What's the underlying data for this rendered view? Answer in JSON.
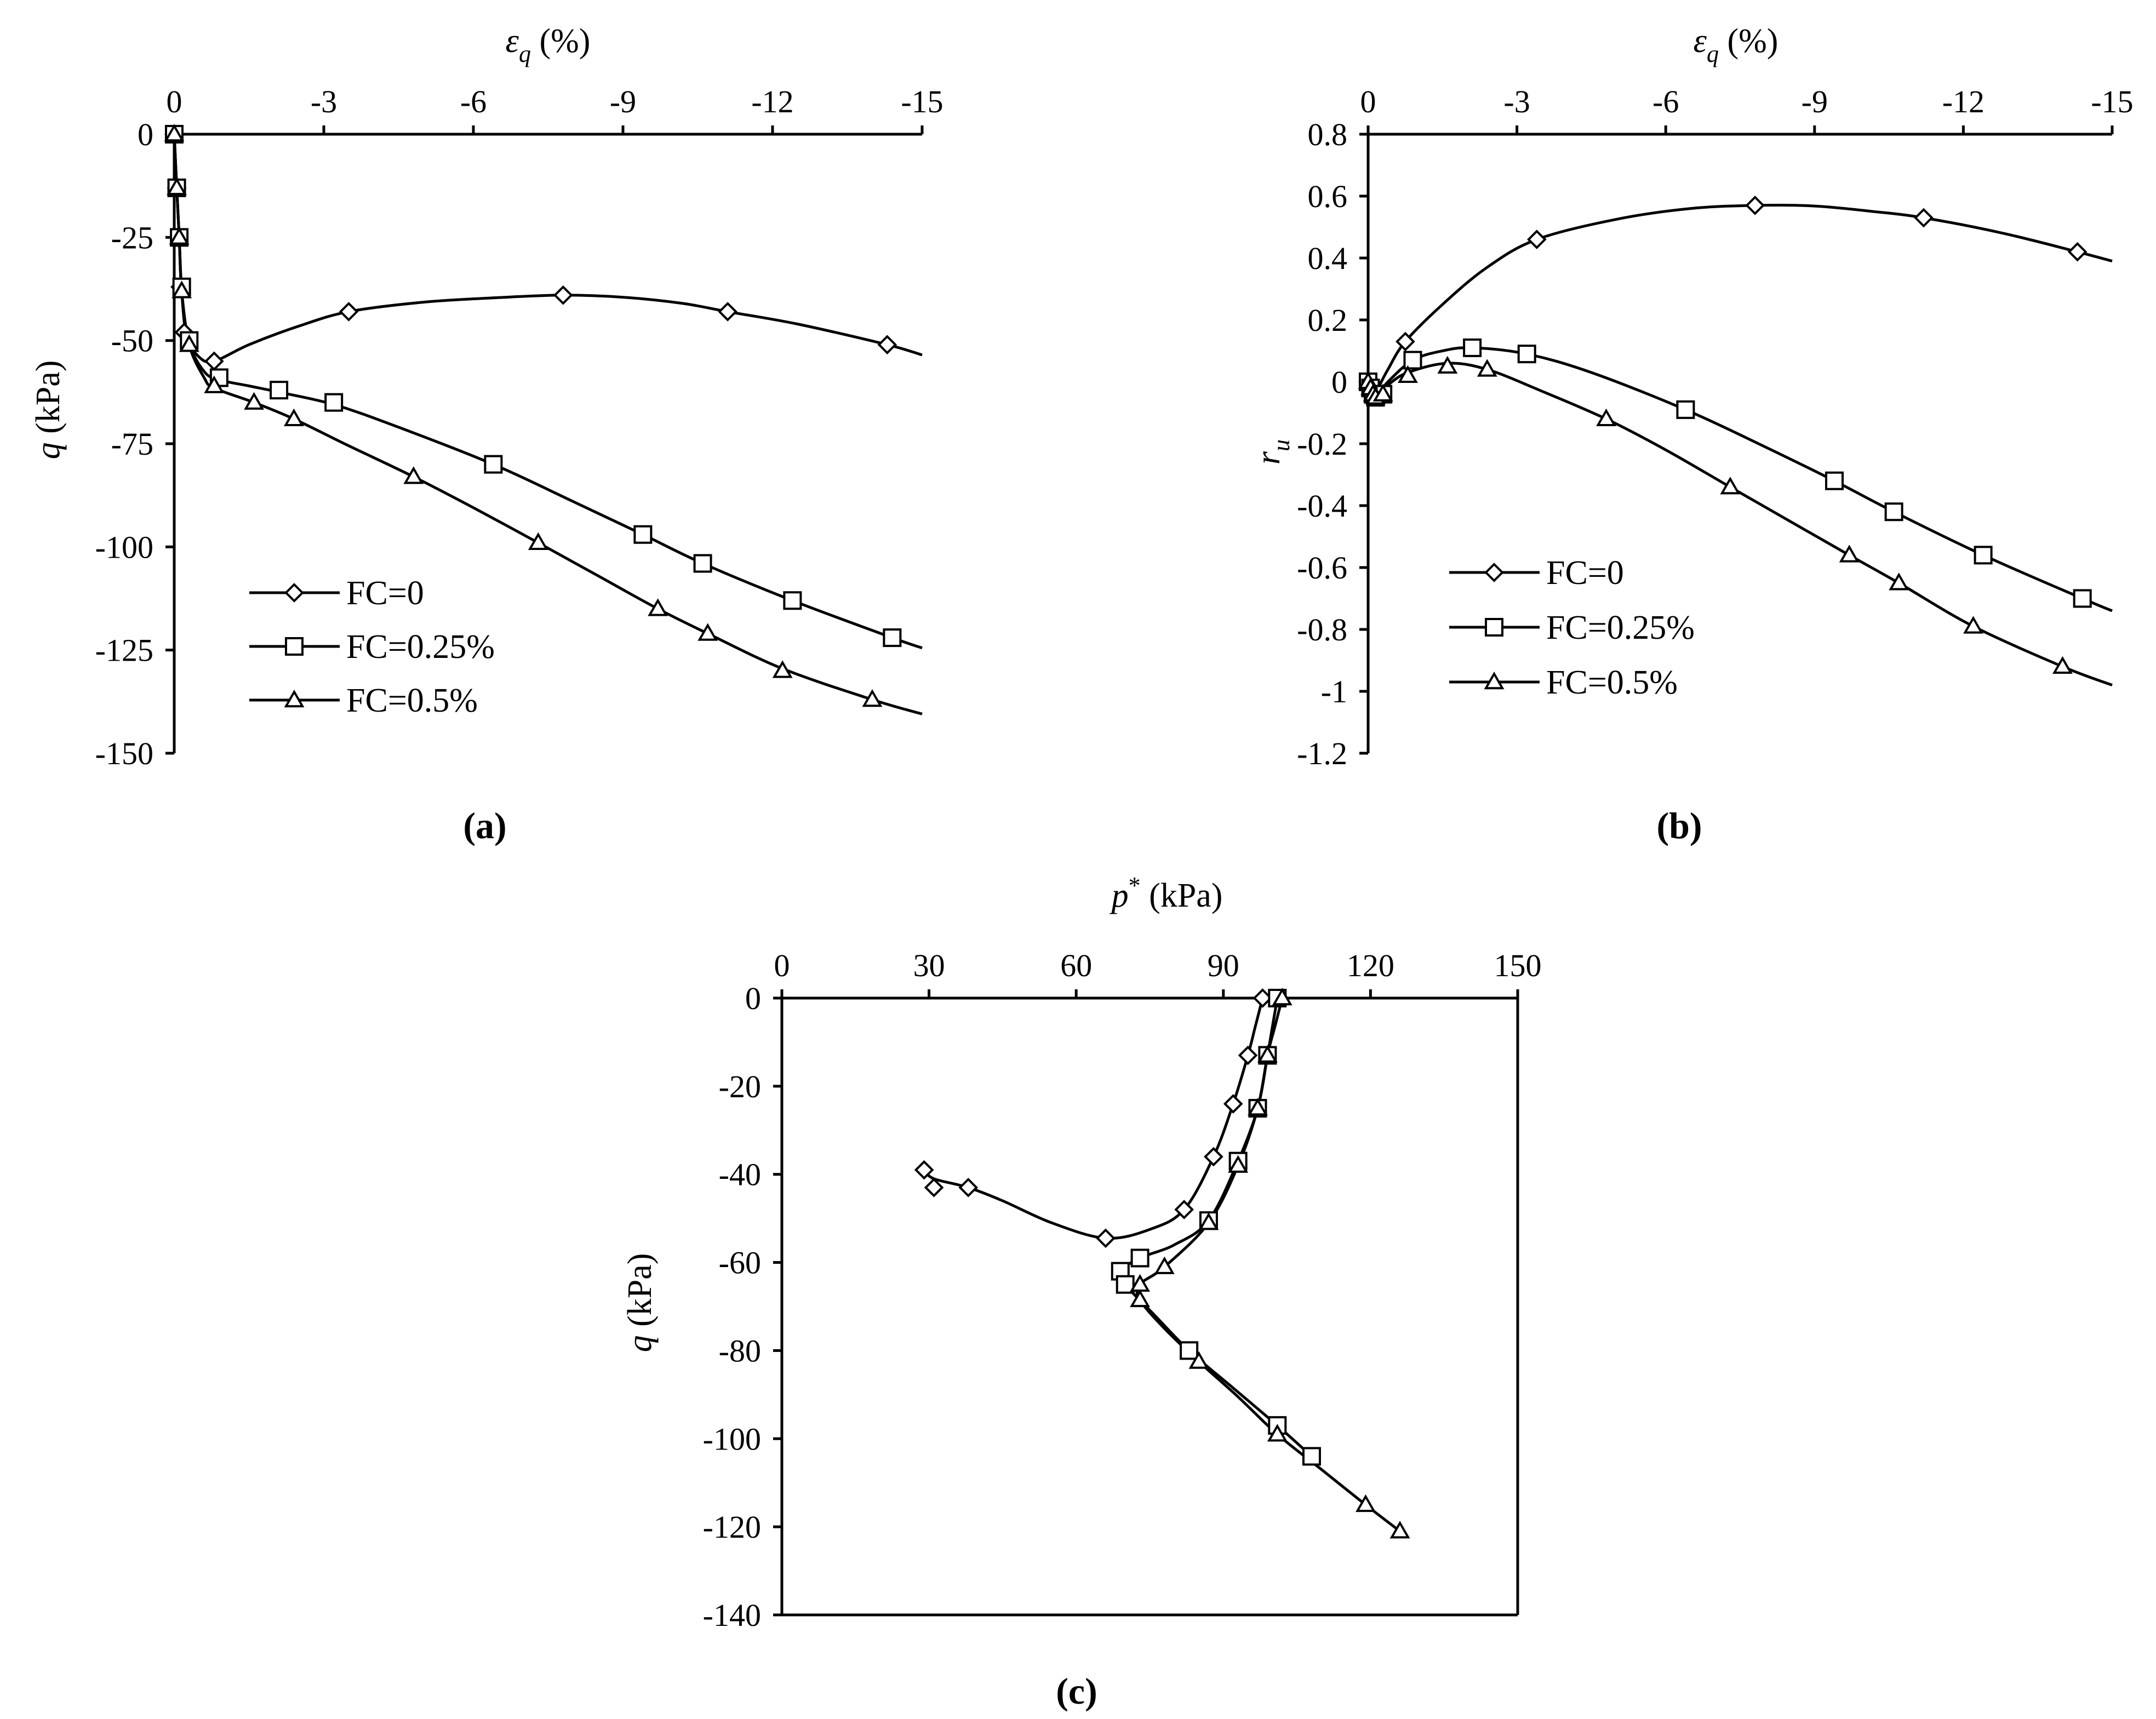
{
  "colors": {
    "ink": "#000000",
    "background": "#ffffff"
  },
  "legend_entries": [
    {
      "label": "FC=0",
      "marker": "diamond"
    },
    {
      "label": "FC=0.25%",
      "marker": "square"
    },
    {
      "label": "FC=0.5%",
      "marker": "triangle"
    }
  ],
  "chart_data": [
    {
      "panel": "a",
      "caption": "(a)",
      "type": "line",
      "xlabel": "ε_q (%)",
      "xlabel_main": "ε",
      "xlabel_sub": "q",
      "xlabel_rest": " (%)",
      "ylabel": "q (kPa)",
      "ylabel_main": "q",
      "ylabel_rest": " (kPa)",
      "xlim": [
        0,
        -15
      ],
      "ylim": [
        0,
        -150
      ],
      "xticks": [
        0,
        -3,
        -6,
        -9,
        -12,
        -15
      ],
      "yticks": [
        0,
        -25,
        -50,
        -75,
        -100,
        -125,
        -150
      ],
      "xtick_labels": [
        "0",
        "-3",
        "-6",
        "-9",
        "-12",
        "-15"
      ],
      "ytick_labels": [
        "0",
        "-25",
        "-50",
        "-75",
        "-100",
        "-125",
        "-150"
      ],
      "x_axis_position": "top",
      "legend_position": "bottom-left",
      "series": [
        {
          "name": "FC=0",
          "marker": "diamond",
          "x": [
            0,
            -0.05,
            -0.08,
            -0.12,
            -0.2,
            -0.8,
            -3.5,
            -7.8,
            -11.1,
            -14.3
          ],
          "y": [
            0,
            -13,
            -25,
            -37,
            -48,
            -55,
            -43,
            -39,
            -43,
            -51
          ],
          "curve_x": [
            0,
            -0.05,
            -0.1,
            -0.15,
            -0.25,
            -0.5,
            -0.8,
            -1.5,
            -2.5,
            -3.5,
            -5,
            -6.5,
            -7.8,
            -9,
            -10.2,
            -11.1,
            -12.5,
            -14.3,
            -15
          ],
          "curve_y": [
            0,
            -13,
            -25,
            -38,
            -49,
            -54,
            -55,
            -51,
            -46.5,
            -43,
            -40.7,
            -39.6,
            -39,
            -39.5,
            -41,
            -43,
            -46,
            -51,
            -53.5
          ]
        },
        {
          "name": "FC=0.25%",
          "marker": "square",
          "x": [
            0,
            -0.05,
            -0.1,
            -0.15,
            -0.3,
            -0.9,
            -2.1,
            -3.2,
            -6.4,
            -9.4,
            -10.6,
            -12.4,
            -14.4
          ],
          "y": [
            0,
            -13,
            -25,
            -37,
            -50,
            -59,
            -62,
            -65,
            -80,
            -97,
            -104,
            -113,
            -122
          ],
          "curve_x": [
            0,
            -0.05,
            -0.1,
            -0.15,
            -0.3,
            -0.6,
            -0.9,
            -1.5,
            -2.1,
            -3.2,
            -4.5,
            -6.4,
            -8,
            -9.4,
            -10.6,
            -12.4,
            -14.4,
            -15
          ],
          "curve_y": [
            0,
            -13,
            -25,
            -38,
            -50.5,
            -57.5,
            -59.5,
            -61,
            -62.5,
            -65.5,
            -71,
            -80,
            -89,
            -97,
            -104,
            -113,
            -122,
            -124.5
          ]
        },
        {
          "name": "FC=0.5%",
          "marker": "triangle",
          "x": [
            0,
            -0.05,
            -0.1,
            -0.15,
            -0.3,
            -0.8,
            -1.6,
            -2.4,
            -4.8,
            -7.3,
            -9.7,
            -10.7,
            -12.2,
            -14.0
          ],
          "y": [
            0,
            -13,
            -25,
            -38,
            -51,
            -61,
            -65,
            -69,
            -83,
            -99,
            -115,
            -121,
            -130,
            -137
          ],
          "curve_x": [
            0,
            -0.05,
            -0.1,
            -0.15,
            -0.3,
            -0.6,
            -0.8,
            -1.6,
            -2.4,
            -3.5,
            -4.8,
            -6,
            -7.3,
            -8.5,
            -9.7,
            -10.7,
            -12.2,
            -14,
            -15
          ],
          "curve_y": [
            0,
            -13,
            -25,
            -38,
            -51,
            -59,
            -61.5,
            -65,
            -69,
            -75.5,
            -83,
            -90.5,
            -99,
            -107,
            -115,
            -121,
            -129.5,
            -137,
            -140.5
          ]
        }
      ]
    },
    {
      "panel": "b",
      "caption": "(b)",
      "type": "line",
      "xlabel": "ε_q (%)",
      "xlabel_main": "ε",
      "xlabel_sub": "q",
      "xlabel_rest": " (%)",
      "ylabel": "r_u",
      "ylabel_main": "r",
      "ylabel_sub": "u",
      "xlim": [
        0,
        -15
      ],
      "ylim": [
        0.8,
        -1.2
      ],
      "xticks": [
        0,
        -3,
        -6,
        -9,
        -12,
        -15
      ],
      "yticks": [
        0.8,
        0.6,
        0.4,
        0.2,
        0,
        -0.2,
        -0.4,
        -0.6,
        -0.8,
        -1,
        -1.2
      ],
      "xtick_labels": [
        "0",
        "-3",
        "-6",
        "-9",
        "-12",
        "-15"
      ],
      "ytick_labels": [
        "0.8",
        "0.6",
        "0.4",
        "0.2",
        "0",
        "-0.2",
        "-0.4",
        "-0.6",
        "-0.8",
        "-1",
        "-1.2"
      ],
      "x_axis_position": "top",
      "legend_position": "bottom-left",
      "series": [
        {
          "name": "FC=0",
          "marker": "diamond",
          "x": [
            0,
            -0.05,
            -0.1,
            -0.15,
            -0.2,
            -0.75,
            -3.4,
            -7.8,
            -11.2,
            -14.3
          ],
          "y": [
            0,
            -0.02,
            -0.03,
            -0.04,
            -0.03,
            0.13,
            0.46,
            0.57,
            0.53,
            0.42
          ],
          "curve_x": [
            0,
            -0.05,
            -0.1,
            -0.2,
            -0.4,
            -0.75,
            -1.5,
            -2.4,
            -3.4,
            -5,
            -6.5,
            -7.8,
            -9,
            -10.2,
            -11.2,
            -12.8,
            -14.3,
            -15
          ],
          "curve_y": [
            0,
            -0.03,
            -0.04,
            -0.02,
            0.04,
            0.13,
            0.25,
            0.37,
            0.46,
            0.525,
            0.56,
            0.57,
            0.568,
            0.55,
            0.53,
            0.48,
            0.42,
            0.39
          ]
        },
        {
          "name": "FC=0.25%",
          "marker": "square",
          "x": [
            0,
            -0.05,
            -0.1,
            -0.15,
            -0.3,
            -0.9,
            -2.1,
            -3.2,
            -6.4,
            -9.4,
            -10.6,
            -12.4,
            -14.4
          ],
          "y": [
            0,
            -0.02,
            -0.04,
            -0.05,
            -0.04,
            0.07,
            0.11,
            0.09,
            -0.09,
            -0.32,
            -0.42,
            -0.56,
            -0.7
          ],
          "curve_x": [
            0,
            -0.05,
            -0.1,
            -0.2,
            -0.4,
            -0.9,
            -1.5,
            -2.1,
            -3.2,
            -4.5,
            -6.4,
            -8,
            -9.4,
            -10.6,
            -12.4,
            -14.4,
            -15
          ],
          "curve_y": [
            0,
            -0.03,
            -0.05,
            -0.04,
            0.0,
            0.07,
            0.1,
            0.11,
            0.09,
            0.03,
            -0.09,
            -0.21,
            -0.32,
            -0.42,
            -0.56,
            -0.7,
            -0.74
          ]
        },
        {
          "name": "FC=0.5%",
          "marker": "triangle",
          "x": [
            0,
            -0.05,
            -0.1,
            -0.15,
            -0.3,
            -0.8,
            -1.6,
            -2.4,
            -4.8,
            -7.3,
            -9.7,
            -10.7,
            -12.2,
            -14.0
          ],
          "y": [
            0,
            -0.02,
            -0.04,
            -0.05,
            -0.04,
            0.02,
            0.05,
            0.04,
            -0.12,
            -0.34,
            -0.56,
            -0.65,
            -0.79,
            -0.92
          ],
          "curve_x": [
            0,
            -0.05,
            -0.1,
            -0.2,
            -0.4,
            -0.8,
            -1.6,
            -2.4,
            -3.5,
            -4.8,
            -6,
            -7.3,
            -8.5,
            -9.7,
            -10.7,
            -12.2,
            -14,
            -15
          ],
          "curve_y": [
            0,
            -0.03,
            -0.05,
            -0.04,
            -0.01,
            0.03,
            0.06,
            0.04,
            -0.03,
            -0.12,
            -0.22,
            -0.34,
            -0.45,
            -0.56,
            -0.65,
            -0.79,
            -0.92,
            -0.98
          ]
        }
      ]
    },
    {
      "panel": "c",
      "caption": "(c)",
      "type": "line",
      "xlabel": "p* (kPa)",
      "xlabel_main": "p",
      "xlabel_sup": "*",
      "xlabel_rest": " (kPa)",
      "ylabel": "q (kPa)",
      "ylabel_main": "q",
      "ylabel_rest": " (kPa)",
      "xlim": [
        0,
        150
      ],
      "ylim": [
        0,
        -140
      ],
      "xticks": [
        0,
        30,
        60,
        90,
        120,
        150
      ],
      "yticks": [
        0,
        -20,
        -40,
        -60,
        -80,
        -100,
        -120,
        -140
      ],
      "xtick_labels": [
        "0",
        "30",
        "60",
        "90",
        "120",
        "150"
      ],
      "ytick_labels": [
        "0",
        "-20",
        "-40",
        "-60",
        "-80",
        "-100",
        "-120",
        "-140"
      ],
      "x_axis_position": "top",
      "legend_position": "none",
      "series": [
        {
          "name": "FC=0",
          "marker": "diamond",
          "x": [
            98,
            95,
            92,
            88,
            82,
            66,
            38,
            31,
            29
          ],
          "y": [
            0,
            -13,
            -24,
            -36,
            -48,
            -54.5,
            -43,
            -43,
            -39
          ],
          "curve_x": [
            98,
            96.5,
            95,
            92,
            88,
            82,
            75,
            66,
            55,
            45,
            38,
            31,
            29
          ],
          "curve_y": [
            0,
            -6.5,
            -13,
            -24,
            -36,
            -48,
            -52.5,
            -54.5,
            -51,
            -46,
            -43,
            -41,
            -39
          ]
        },
        {
          "name": "FC=0.25%",
          "marker": "square",
          "x": [
            101,
            99,
            97,
            93,
            87,
            73,
            69,
            70,
            83,
            101,
            108
          ],
          "y": [
            0,
            -13,
            -25,
            -37,
            -50.5,
            -59,
            -62,
            -65,
            -80,
            -97,
            -104
          ],
          "curve_x": [
            101,
            100,
            99,
            97,
            93,
            87,
            80,
            73,
            69,
            70,
            76,
            83,
            92,
            101,
            108
          ],
          "curve_y": [
            0,
            -6.5,
            -13,
            -25,
            -37,
            -50.5,
            -56,
            -59,
            -62,
            -65,
            -72,
            -80,
            -88.5,
            -97,
            -104
          ]
        },
        {
          "name": "FC=0.5%",
          "marker": "triangle",
          "x": [
            102,
            99,
            97,
            93,
            87,
            78,
            73,
            73,
            85,
            101,
            119,
            126
          ],
          "y": [
            0,
            -13,
            -25,
            -38,
            -51,
            -61,
            -65,
            -68.5,
            -82.5,
            -99,
            -115,
            -121
          ],
          "curve_x": [
            102,
            100.5,
            99,
            97,
            93,
            87,
            78,
            73,
            73,
            78,
            85,
            93,
            101,
            110,
            119,
            126
          ],
          "curve_y": [
            0,
            -6.5,
            -13,
            -25,
            -38,
            -51,
            -61,
            -65,
            -68.5,
            -75,
            -82.5,
            -90.5,
            -99,
            -107,
            -115,
            -121
          ]
        }
      ]
    }
  ]
}
